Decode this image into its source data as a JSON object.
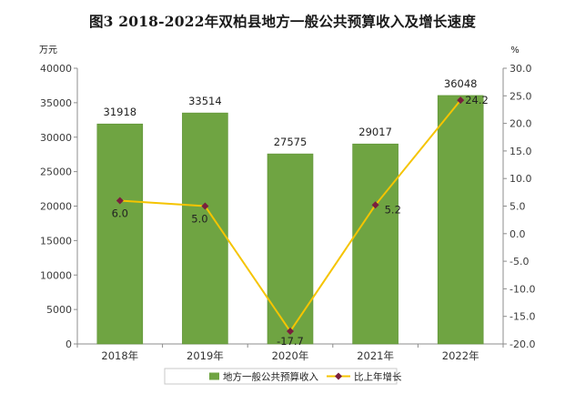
{
  "chart_data": {
    "type": "bar",
    "title": "图3  2018-2022年双柏县地方一般公共预算收入及增长速度",
    "ylabel": "万元",
    "y2label": "%",
    "categories": [
      "2018年",
      "2019年",
      "2020年",
      "2021年",
      "2022年"
    ],
    "ylim": [
      0,
      40000
    ],
    "y_ticks": [
      "0",
      "5000",
      "10000",
      "15000",
      "20000",
      "25000",
      "30000",
      "35000",
      "40000"
    ],
    "y2lim": [
      -20,
      30
    ],
    "y2_ticks": [
      "-20.0",
      "-15.0",
      "-10.0",
      "-5.0",
      "0.0",
      "5.0",
      "10.0",
      "15.0",
      "20.0",
      "25.0",
      "30.0"
    ],
    "series": [
      {
        "name": "地方一般公共预算收入",
        "type": "bar",
        "axis": "left",
        "values": [
          31918,
          33514,
          27575,
          29017,
          36048
        ],
        "labels": [
          "31918",
          "33514",
          "27575",
          "29017",
          "36048"
        ]
      },
      {
        "name": "比上年增长",
        "type": "line",
        "axis": "right",
        "values": [
          6.0,
          5.0,
          -17.7,
          5.2,
          24.2
        ],
        "labels": [
          "6.0",
          "5.0",
          "-17.7",
          "5.2",
          "24.2"
        ]
      }
    ],
    "legend_position": "bottom",
    "grid": false,
    "colors": {
      "bar": "#6fa442",
      "bar_edge": "#5e9236",
      "line": "#f5c400",
      "marker": "#7a1f3d",
      "axis": "#8c8c8c"
    }
  }
}
